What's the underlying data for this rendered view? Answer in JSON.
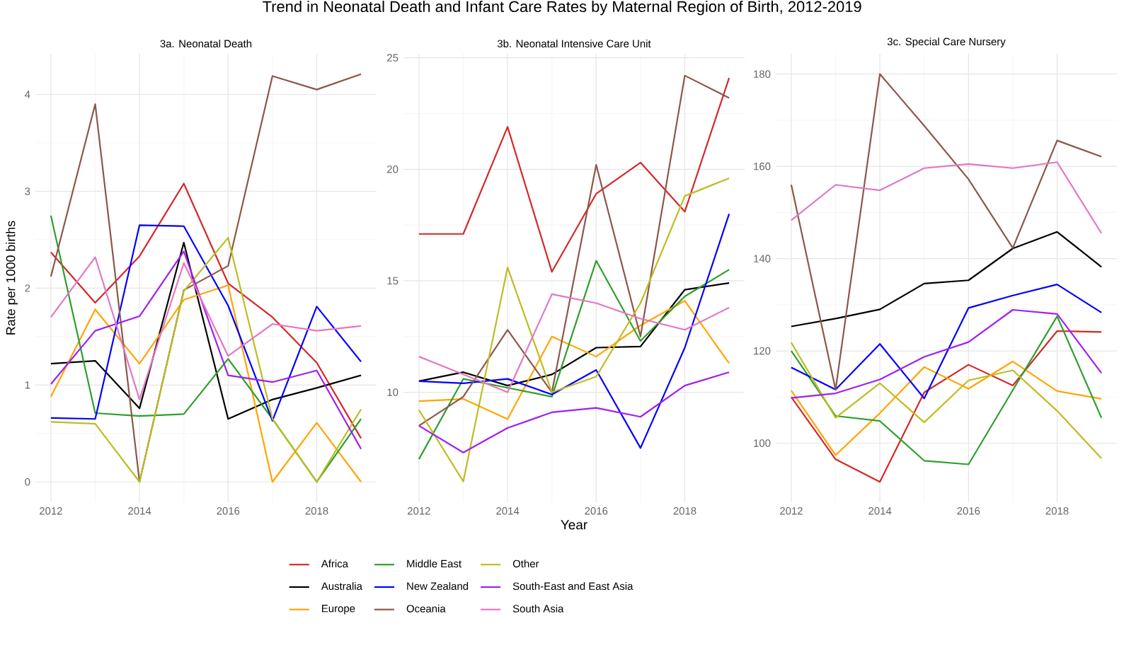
{
  "chart_data": [
    {
      "type": "line",
      "title": "Trend in Neonatal Death and Infant Care Rates by Maternal Region of Birth, 2012-2019",
      "subtitle": "3a. Neonatal Death",
      "ylabel": "Rate per 1000 births",
      "x": [
        2012,
        2013,
        2014,
        2015,
        2016,
        2017,
        2018,
        2019
      ],
      "xlim": [
        2011.65,
        2019.35
      ],
      "xticks": [
        2012,
        2014,
        2016,
        2018
      ],
      "ylim": [
        -0.21,
        4.42
      ],
      "yticks": [
        0,
        1,
        2,
        3,
        4
      ],
      "grid": true,
      "series": [
        {
          "color": "#d62728",
          "values": [
            2.37,
            1.85,
            2.33,
            3.08,
            2.05,
            1.7,
            1.23,
            0.45
          ]
        },
        {
          "color": "#000000",
          "values": [
            1.22,
            1.25,
            0.76,
            2.47,
            0.65,
            0.85,
            0.97,
            1.1
          ]
        },
        {
          "color": "#ffa500",
          "values": [
            0.88,
            1.78,
            1.22,
            1.88,
            2.03,
            0.0,
            0.61,
            0.0
          ]
        },
        {
          "color": "#2ca02c",
          "values": [
            2.75,
            0.71,
            0.68,
            0.7,
            1.27,
            0.65,
            0.0,
            0.65
          ]
        },
        {
          "color": "#0000ff",
          "values": [
            0.66,
            0.65,
            2.65,
            2.64,
            1.82,
            0.63,
            1.81,
            1.24
          ]
        },
        {
          "color": "#8c564b",
          "values": [
            2.12,
            3.9,
            0.0,
            1.98,
            2.23,
            4.19,
            4.05,
            4.21
          ]
        },
        {
          "color": "#bcbd22",
          "values": [
            0.62,
            0.6,
            0.0,
            1.97,
            2.52,
            0.65,
            0.0,
            0.75
          ]
        },
        {
          "color": "#a020f0",
          "values": [
            1.01,
            1.56,
            1.71,
            2.38,
            1.1,
            1.03,
            1.15,
            0.34
          ]
        },
        {
          "color": "#e377c2",
          "values": [
            1.7,
            2.32,
            0.85,
            2.26,
            1.3,
            1.63,
            1.56,
            1.61
          ]
        }
      ]
    },
    {
      "type": "line",
      "subtitle": "3b. Neonatal Intensive Care Unit",
      "xlabel": "Year",
      "x": [
        2012,
        2013,
        2014,
        2015,
        2016,
        2017,
        2018,
        2019
      ],
      "xlim": [
        2011.65,
        2019.35
      ],
      "xticks": [
        2012,
        2014,
        2016,
        2018
      ],
      "ylim": [
        5.07,
        25.18
      ],
      "yticks": [
        10,
        15,
        20,
        25
      ],
      "grid": true,
      "legend": "bottom",
      "series": [
        {
          "name": "Africa",
          "color": "#d62728",
          "values": [
            17.1,
            17.1,
            21.9,
            15.4,
            18.9,
            20.3,
            18.1,
            24.1
          ]
        },
        {
          "name": "Australia",
          "color": "#000000",
          "values": [
            10.5,
            10.9,
            10.3,
            10.8,
            12.0,
            12.05,
            14.6,
            14.9
          ]
        },
        {
          "name": "Europe",
          "color": "#ffa500",
          "values": [
            9.6,
            9.7,
            8.8,
            12.5,
            11.6,
            13.0,
            14.1,
            11.3
          ]
        },
        {
          "name": "Middle East",
          "color": "#2ca02c",
          "values": [
            7.0,
            10.6,
            10.2,
            9.8,
            15.9,
            12.3,
            14.3,
            15.5
          ]
        },
        {
          "name": "New Zealand",
          "color": "#0000ff",
          "values": [
            10.5,
            10.4,
            10.6,
            9.9,
            11.0,
            7.5,
            12.0,
            18.0
          ]
        },
        {
          "name": "Oceania",
          "color": "#8c564b",
          "values": [
            8.5,
            9.8,
            12.8,
            10.0,
            20.2,
            12.5,
            24.2,
            23.2
          ]
        },
        {
          "name": "Other",
          "color": "#bcbd22",
          "values": [
            9.2,
            6.0,
            15.6,
            10.0,
            10.7,
            14.0,
            18.8,
            19.6
          ]
        },
        {
          "name": "South-East and East Asia",
          "color": "#a020f0",
          "values": [
            8.5,
            7.3,
            8.4,
            9.1,
            9.3,
            8.9,
            10.3,
            10.9
          ]
        },
        {
          "name": "South Asia",
          "color": "#e377c2",
          "values": [
            11.6,
            10.8,
            10.0,
            14.4,
            14.0,
            13.3,
            12.8,
            13.8
          ]
        }
      ]
    },
    {
      "type": "line",
      "subtitle": "3c. Special Care Nursery",
      "x": [
        2012,
        2013,
        2014,
        2015,
        2016,
        2017,
        2018,
        2019
      ],
      "xlim": [
        2011.65,
        2019.35
      ],
      "xticks": [
        2012,
        2014,
        2016,
        2018
      ],
      "ylim": [
        87.2,
        184.4
      ],
      "yticks": [
        100,
        120,
        140,
        160,
        180
      ],
      "grid": true,
      "series": [
        {
          "color": "#d62728",
          "values": [
            110,
            96.5,
            91.6,
            111,
            117,
            112.5,
            124.3,
            124.1
          ]
        },
        {
          "color": "#000000",
          "values": [
            125.3,
            127,
            129,
            134.6,
            135.3,
            142.2,
            145.8,
            138.2
          ]
        },
        {
          "color": "#ffa500",
          "values": [
            111.4,
            97.4,
            106.5,
            116.5,
            111.8,
            117.7,
            111.3,
            109.6
          ]
        },
        {
          "color": "#2ca02c",
          "values": [
            120,
            105.9,
            104.8,
            96.2,
            95.4,
            111.5,
            127.5,
            105.5
          ]
        },
        {
          "color": "#0000ff",
          "values": [
            116.4,
            111.6,
            121.5,
            109.7,
            129.3,
            132,
            134.4,
            128.3
          ]
        },
        {
          "color": "#8c564b",
          "values": [
            156,
            111.6,
            180,
            168.8,
            157.2,
            142.3,
            165.6,
            162.1
          ]
        },
        {
          "color": "#bcbd22",
          "values": [
            121.8,
            105.5,
            113,
            104.5,
            113.6,
            115.8,
            107,
            96.7
          ]
        },
        {
          "color": "#a020f0",
          "values": [
            109.8,
            110.8,
            113.8,
            118.7,
            121.9,
            128.9,
            128,
            115.2
          ]
        },
        {
          "color": "#e377c2",
          "values": [
            148.3,
            156,
            154.8,
            159.6,
            160.5,
            159.6,
            160.9,
            145.5
          ]
        }
      ]
    }
  ]
}
